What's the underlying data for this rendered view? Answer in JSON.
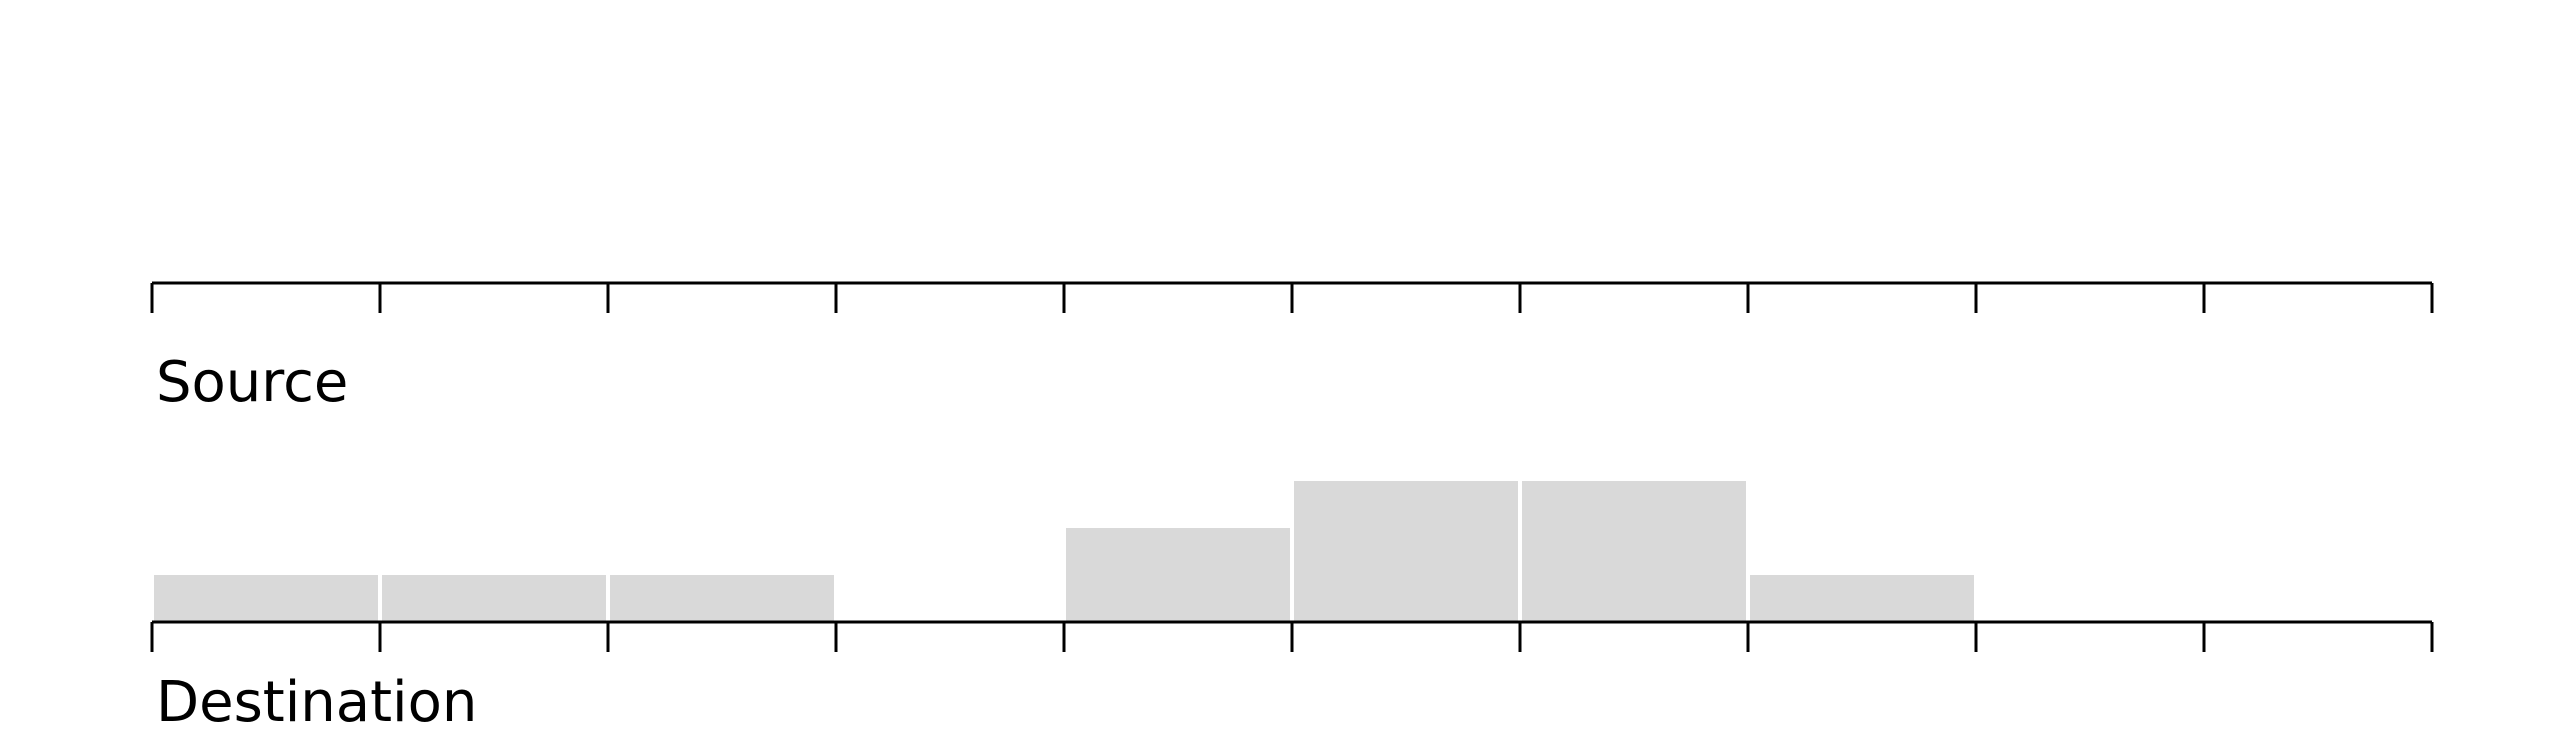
{
  "chart_data": {
    "type": "bar",
    "colors": {
      "bar": "#d9d9d9",
      "axis": "#000000"
    },
    "source_axis": {
      "label": "Source",
      "bins": 10
    },
    "destination_axis": {
      "label": "Destination",
      "bins": 10
    },
    "bins": [
      1,
      2,
      3,
      4,
      5,
      6,
      7,
      8,
      9,
      10
    ],
    "values": [
      1,
      1,
      1,
      0,
      2,
      3,
      3,
      1,
      0,
      0
    ],
    "ylim": [
      0,
      3
    ]
  }
}
